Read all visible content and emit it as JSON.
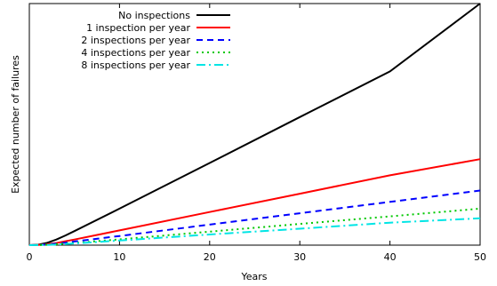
{
  "chart_data": {
    "type": "line",
    "xlabel": "Years",
    "ylabel": "Expected number of failures",
    "xlim": [
      0,
      50
    ],
    "ylim": [
      0,
      100
    ],
    "x_ticks": [
      0,
      10,
      20,
      30,
      40,
      50
    ],
    "y_ticks_labeled": false,
    "grid": false,
    "legend_position": "top-left",
    "series": [
      {
        "name": "No inspections",
        "color": "#000000",
        "dash": "solid",
        "x": [
          0,
          1,
          2,
          3,
          4,
          5,
          10,
          20,
          30,
          40,
          50
        ],
        "y": [
          0,
          0.2,
          1.0,
          2.3,
          4.0,
          5.8,
          15.1,
          34.0,
          53.0,
          71.9,
          100
        ]
      },
      {
        "name": "1 inspection per year",
        "color": "#ff0000",
        "dash": "solid",
        "x": [
          0,
          1,
          2,
          3,
          4,
          5,
          10,
          20,
          30,
          40,
          50
        ],
        "y": [
          0,
          0.1,
          0.4,
          0.9,
          1.6,
          2.3,
          6.1,
          13.7,
          21.3,
          28.9,
          35.6
        ]
      },
      {
        "name": "2 inspections per year",
        "color": "#0000ff",
        "dash": "dashed",
        "x": [
          0,
          1,
          2,
          3,
          4,
          5,
          10,
          20,
          30,
          40,
          50
        ],
        "y": [
          0,
          0.05,
          0.3,
          0.6,
          1.0,
          1.5,
          3.8,
          8.5,
          13.2,
          17.9,
          22.6
        ]
      },
      {
        "name": "4 inspections per year",
        "color": "#00c800",
        "dash": "dotted",
        "x": [
          0,
          1,
          2,
          3,
          4,
          5,
          10,
          20,
          30,
          40,
          50
        ],
        "y": [
          0,
          0.03,
          0.15,
          0.35,
          0.6,
          0.9,
          2.4,
          5.6,
          8.8,
          11.9,
          15.1
        ]
      },
      {
        "name": "8 inspections per year",
        "color": "#00e5e5",
        "dash": "dashdot",
        "x": [
          0,
          1,
          2,
          3,
          4,
          5,
          10,
          20,
          30,
          40,
          50
        ],
        "y": [
          0,
          0.02,
          0.1,
          0.25,
          0.45,
          0.7,
          1.9,
          4.4,
          6.8,
          9.3,
          11.1
        ]
      }
    ]
  }
}
